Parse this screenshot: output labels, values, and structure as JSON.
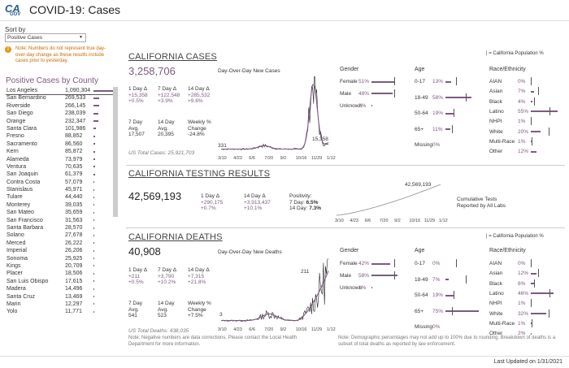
{
  "header": {
    "logo_text": "CA",
    "logo_sub": "GOV",
    "title": "COVID-19: Cases"
  },
  "sort": {
    "label": "Sort by",
    "selected": "Positive Cases"
  },
  "note": {
    "text": "Note: Numbers do not represent true day-over-day change as these results include cases prior to yesterday."
  },
  "county": {
    "title": "Positive Cases by County",
    "rows": [
      {
        "name": "Los Angeles",
        "value": "1,090,304",
        "num": 1090304
      },
      {
        "name": "San Bernardino",
        "value": "269,533",
        "num": 269533
      },
      {
        "name": "Riverside",
        "value": "266,145",
        "num": 266145
      },
      {
        "name": "San Diego",
        "value": "238,039",
        "num": 238039
      },
      {
        "name": "Orange",
        "value": "232,347",
        "num": 232347
      },
      {
        "name": "Santa Clara",
        "value": "101,986",
        "num": 101986
      },
      {
        "name": "Fresno",
        "value": "88,852",
        "num": 88852
      },
      {
        "name": "Sacramento",
        "value": "86,560",
        "num": 86560
      },
      {
        "name": "Kern",
        "value": "85,872",
        "num": 85872
      },
      {
        "name": "Alameda",
        "value": "73,979",
        "num": 73979
      },
      {
        "name": "Ventura",
        "value": "70,635",
        "num": 70635
      },
      {
        "name": "San Joaquin",
        "value": "61,379",
        "num": 61379
      },
      {
        "name": "Contra Costa",
        "value": "57,079",
        "num": 57079
      },
      {
        "name": "Stanislaus",
        "value": "45,971",
        "num": 45971
      },
      {
        "name": "Tulare",
        "value": "44,440",
        "num": 44440
      },
      {
        "name": "Monterey",
        "value": "39,035",
        "num": 39035
      },
      {
        "name": "San Mateo",
        "value": "35,659",
        "num": 35659
      },
      {
        "name": "San Francisco",
        "value": "31,563",
        "num": 31563
      },
      {
        "name": "Santa Barbara",
        "value": "28,570",
        "num": 28570
      },
      {
        "name": "Solano",
        "value": "27,678",
        "num": 27678
      },
      {
        "name": "Merced",
        "value": "26,222",
        "num": 26222
      },
      {
        "name": "Imperial",
        "value": "26,206",
        "num": 26206
      },
      {
        "name": "Sonoma",
        "value": "25,925",
        "num": 25925
      },
      {
        "name": "Kings",
        "value": "20,709",
        "num": 20709
      },
      {
        "name": "Placer",
        "value": "18,506",
        "num": 18506
      },
      {
        "name": "San Luis Obispo",
        "value": "17,615",
        "num": 17615
      },
      {
        "name": "Madera",
        "value": "14,496",
        "num": 14496
      },
      {
        "name": "Santa Cruz",
        "value": "13,469",
        "num": 13469
      },
      {
        "name": "Marin",
        "value": "12,297",
        "num": 12297
      },
      {
        "name": "Yolo",
        "value": "11,771",
        "num": 11771
      }
    ]
  },
  "cases": {
    "title": "CALIFORNIA CASES",
    "total": "3,258,706",
    "chart_label": "Day-Over-Day New Cases",
    "d1_label": "1 Day Δ",
    "d1_abs": "+15,358",
    "d1_pct": "+0.5%",
    "d7_label": "7 Day Δ",
    "d7_abs": "+122,548",
    "d7_pct": "+3.9%",
    "d14_label": "14 Day Δ",
    "d14_abs": "+285,532",
    "d14_pct": "+9.6%",
    "avg7_label": "7 Day Avg.",
    "avg7": "17,507",
    "avg14_label": "14 Day Avg.",
    "avg14": "20,395",
    "weekly_label": "Weekly % Change",
    "weekly": "-24.8%",
    "us_total": "US Total Cases: 25,921,703",
    "first_val": "331",
    "last_val": "15,358",
    "ticks": [
      "3/10",
      "4/23",
      "6/6",
      "7/20",
      "9/2",
      "10/16",
      "11/29",
      "1/12"
    ]
  },
  "testing": {
    "title": "CALIFORNIA TESTING RESULTS",
    "total": "42,569,193",
    "d1_label": "1 Day Δ",
    "d1_abs": "+290,175",
    "d1_pct": "+0.7%",
    "d14_label": "14 Day Δ",
    "d14_abs": "+3,913,437",
    "d14_pct": "+10.1%",
    "pos_label": "Positivity:",
    "pos7_label": "7 Day:",
    "pos7": "6.5%",
    "pos14_label": "14 Day:",
    "pos14": "7.3%",
    "peak": "42,569,193",
    "legend1": "Cumulative Tests",
    "legend2": "Reported by All Labs",
    "ticks": [
      "3/10",
      "4/23",
      "6/6",
      "7/20",
      "9/2",
      "10/16",
      "11/29",
      "1/12"
    ]
  },
  "deaths": {
    "title": "CALIFORNIA DEATHS",
    "total": "40,908",
    "chart_label": "Day-Over-Day New Deaths",
    "d1_label": "1 Day Δ",
    "d1_abs": "+211",
    "d1_pct": "+0.5%",
    "d7_label": "7 Day Δ",
    "d7_abs": "+3,790",
    "d7_pct": "+10.2%",
    "d14_label": "14 Day Δ",
    "d14_abs": "+7,315",
    "d14_pct": "+21.8%",
    "avg7_label": "7 Day Avg.",
    "avg7": "541",
    "avg14_label": "14 Day Avg.",
    "avg14": "523",
    "weekly_label": "Weekly % Change",
    "weekly": "+7.5%",
    "us_total": "US Total Deaths: 438,035",
    "note": "Note: Negative numbers are data corrections. Please contact the Local Health Department for more information.",
    "first_val": "3",
    "peak_val": "211",
    "ticks": [
      "3/10",
      "4/23",
      "6/6",
      "7/20",
      "9/2",
      "10/16",
      "11/29",
      "1/12"
    ]
  },
  "demo_cases": {
    "gender_head": "Gender",
    "age_head": "Age",
    "race_head": "Race/Ethnicity",
    "pop_legend": "| = California Population %",
    "gender": [
      {
        "label": "Female",
        "pct": "51%",
        "v": 51,
        "pop": 50
      },
      {
        "label": "Male",
        "pct": "48%",
        "v": 48,
        "pop": 50
      },
      {
        "label": "Unknown",
        "pct": "2%",
        "v": 2,
        "pop": null
      }
    ],
    "age": [
      {
        "label": "0-17",
        "pct": "13%",
        "v": 13,
        "pop": 23
      },
      {
        "label": "18-49",
        "pct": "58%",
        "v": 58,
        "pop": 45
      },
      {
        "label": "50-64",
        "pct": "19%",
        "v": 19,
        "pop": 18
      },
      {
        "label": "65+",
        "pct": "11%",
        "v": 11,
        "pop": 15
      },
      {
        "label": "Missing",
        "pct": "0%",
        "v": 0,
        "pop": null
      }
    ],
    "race": [
      {
        "label": "AIAN",
        "pct": "0%",
        "v": 0,
        "pop": 0.5
      },
      {
        "label": "Asian",
        "pct": "7%",
        "v": 7,
        "pop": 15
      },
      {
        "label": "Black",
        "pct": "4%",
        "v": 4,
        "pop": 6
      },
      {
        "label": "Latino",
        "pct": "55%",
        "v": 55,
        "pop": 39
      },
      {
        "label": "NHPI",
        "pct": "1%",
        "v": 1,
        "pop": 0.5
      },
      {
        "label": "White",
        "pct": "20%",
        "v": 20,
        "pop": 37
      },
      {
        "label": "Multi-Race",
        "pct": "1%",
        "v": 1,
        "pop": 2
      },
      {
        "label": "Other",
        "pct": "12%",
        "v": 12,
        "pop": null
      }
    ]
  },
  "demo_deaths": {
    "gender_head": "Gender",
    "age_head": "Age",
    "race_head": "Race/Ethnicity",
    "pop_legend": "| = California Population %",
    "gender": [
      {
        "label": "Female",
        "pct": "42%",
        "v": 42,
        "pop": 50
      },
      {
        "label": "Male",
        "pct": "58%",
        "v": 58,
        "pop": 50
      },
      {
        "label": "Unknown",
        "pct": "1%",
        "v": 1,
        "pop": null
      }
    ],
    "age": [
      {
        "label": "0-17",
        "pct": "0%",
        "v": 0,
        "pop": 23
      },
      {
        "label": "18-49",
        "pct": "7%",
        "v": 7,
        "pop": 45
      },
      {
        "label": "50-64",
        "pct": "19%",
        "v": 19,
        "pop": 18
      },
      {
        "label": "65+",
        "pct": "75%",
        "v": 75,
        "pop": 15
      },
      {
        "label": "Missing",
        "pct": "0%",
        "v": 0,
        "pop": null
      }
    ],
    "race": [
      {
        "label": "AIAN",
        "pct": "0%",
        "v": 0,
        "pop": 0.5
      },
      {
        "label": "Asian",
        "pct": "12%",
        "v": 12,
        "pop": 15
      },
      {
        "label": "Black",
        "pct": "6%",
        "v": 6,
        "pop": 6
      },
      {
        "label": "Latino",
        "pct": "46%",
        "v": 46,
        "pop": 39
      },
      {
        "label": "NHPI",
        "pct": "1%",
        "v": 1,
        "pop": 0.5
      },
      {
        "label": "White",
        "pct": "32%",
        "v": 32,
        "pop": 37
      },
      {
        "label": "Multi-Race",
        "pct": "1%",
        "v": 1,
        "pop": 2
      },
      {
        "label": "Other",
        "pct": "2%",
        "v": 2,
        "pop": null
      }
    ],
    "footnote": "Note: Demographic percentages may not add up to 100% due to rounding. Breakdown of deaths is a subset of total deaths as reported by law enforcement."
  },
  "footer": {
    "updated": "Last Updated on 1/31/2021"
  },
  "colors": {
    "accent": "#7c5a7e",
    "title": "#444444",
    "warn": "#e8950f"
  }
}
